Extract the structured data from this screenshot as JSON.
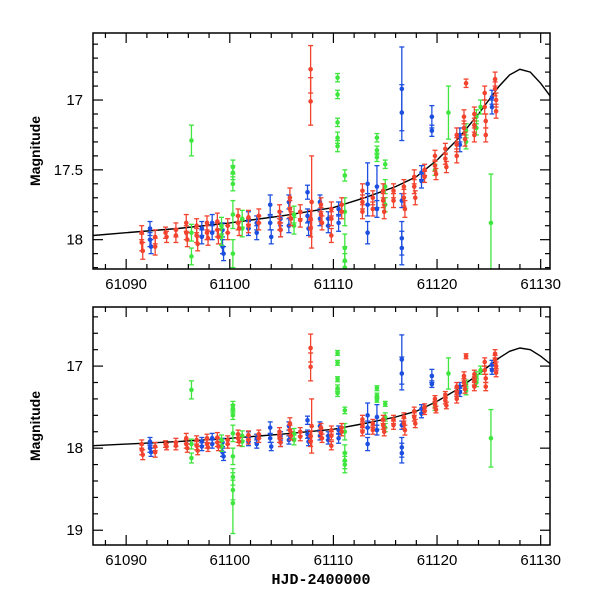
{
  "chart_data": [
    {
      "type": "scatter",
      "panel": "top",
      "title": "",
      "xlabel": "",
      "ylabel": "Magnitude",
      "xlim": [
        61086.8,
        61130.9
      ],
      "ylim": [
        18.21,
        16.52
      ],
      "y_inverted": true,
      "xticks": [
        61090,
        61100,
        61110,
        61120,
        61130
      ],
      "xtick_labels": [
        "61090",
        "61100",
        "61110",
        "61120",
        "61130"
      ],
      "yticks": [
        17,
        17.5,
        18
      ],
      "ytick_labels": [
        "17",
        "17.5",
        "18"
      ],
      "y_minor_step": 0.1,
      "grid": false
    },
    {
      "type": "scatter",
      "panel": "bottom",
      "title": "",
      "xlabel": "HJD-2400000",
      "ylabel": "Magnitude",
      "xlim": [
        61086.8,
        61130.9
      ],
      "ylim": [
        19.18,
        16.28
      ],
      "y_inverted": true,
      "xticks": [
        61090,
        61100,
        61110,
        61120,
        61130
      ],
      "xtick_labels": [
        "61090",
        "61100",
        "61110",
        "61120",
        "61130"
      ],
      "yticks": [
        17,
        18,
        19
      ],
      "ytick_labels": [
        "17",
        "18",
        "19"
      ],
      "y_minor_step": 0.2,
      "grid": false
    }
  ],
  "model": {
    "name": "model curve",
    "color": "#000000",
    "points": [
      [
        61086.8,
        17.97
      ],
      [
        61090,
        17.95
      ],
      [
        61095,
        17.92
      ],
      [
        61100,
        17.88
      ],
      [
        61105,
        17.83
      ],
      [
        61110,
        17.77
      ],
      [
        61113,
        17.7
      ],
      [
        61116,
        17.62
      ],
      [
        61118,
        17.55
      ],
      [
        61120,
        17.43
      ],
      [
        61122,
        17.28
      ],
      [
        61124,
        17.1
      ],
      [
        61125,
        17.0
      ],
      [
        61126,
        16.9
      ],
      [
        61127,
        16.82
      ],
      [
        61128,
        16.78
      ],
      [
        61129,
        16.8
      ],
      [
        61130,
        16.88
      ],
      [
        61130.9,
        16.97
      ]
    ]
  },
  "series": [
    {
      "name": "blue",
      "color": "#1c4fe0",
      "points": [
        [
          61092.3,
          17.92,
          0.05
        ],
        [
          61092.3,
          18.0,
          0.05
        ],
        [
          61092.4,
          18.05,
          0.05
        ],
        [
          61097.3,
          17.92,
          0.05
        ],
        [
          61097.3,
          17.98,
          0.05
        ],
        [
          61098.3,
          17.88,
          0.06
        ],
        [
          61098.3,
          17.95,
          0.05
        ],
        [
          61099.3,
          17.93,
          0.05
        ],
        [
          61099.3,
          18.05,
          0.05
        ],
        [
          61099.4,
          18.1,
          0.05
        ],
        [
          61101.8,
          17.86,
          0.06
        ],
        [
          61101.8,
          17.92,
          0.05
        ],
        [
          61102.6,
          17.88,
          0.05
        ],
        [
          61102.6,
          17.95,
          0.05
        ],
        [
          61103.9,
          17.75,
          0.07
        ],
        [
          61103.9,
          17.88,
          0.05
        ],
        [
          61104.0,
          17.98,
          0.05
        ],
        [
          61104.9,
          17.85,
          0.05
        ],
        [
          61104.9,
          17.93,
          0.05
        ],
        [
          61105.7,
          17.73,
          0.05
        ],
        [
          61105.7,
          17.9,
          0.05
        ],
        [
          61107.5,
          17.66,
          0.05
        ],
        [
          61107.5,
          17.83,
          0.05
        ],
        [
          61107.6,
          17.92,
          0.05
        ],
        [
          61108.7,
          17.73,
          0.05
        ],
        [
          61108.7,
          17.85,
          0.05
        ],
        [
          61109.5,
          17.85,
          0.05
        ],
        [
          61109.5,
          17.9,
          0.05
        ],
        [
          61110.5,
          17.78,
          0.05
        ],
        [
          61110.5,
          17.88,
          0.06
        ],
        [
          61113.3,
          17.6,
          0.15
        ],
        [
          61113.3,
          17.75,
          0.08
        ],
        [
          61113.3,
          17.95,
          0.08
        ],
        [
          61114.2,
          17.62,
          0.15
        ],
        [
          61114.2,
          17.78,
          0.06
        ],
        [
          61116.6,
          16.92,
          0.3
        ],
        [
          61116.6,
          17.09,
          0.2
        ],
        [
          61116.6,
          17.72,
          0.05
        ],
        [
          61116.6,
          17.99,
          0.12
        ],
        [
          61116.6,
          18.06,
          0.12
        ],
        [
          61118.5,
          17.52,
          0.05
        ],
        [
          61118.5,
          17.58,
          0.05
        ],
        [
          61119.5,
          17.12,
          0.08
        ],
        [
          61119.5,
          17.22,
          0.04
        ],
        [
          61122.2,
          17.25,
          0.05
        ],
        [
          61122.2,
          17.32,
          0.05
        ],
        [
          61125.3,
          16.98,
          0.05
        ],
        [
          61125.3,
          17.05,
          0.05
        ]
      ]
    },
    {
      "name": "green",
      "color": "#3ee63e",
      "points": [
        [
          61096.3,
          17.29,
          0.11
        ],
        [
          61096.3,
          17.95,
          0.06
        ],
        [
          61096.3,
          18.12,
          0.06
        ],
        [
          61099.2,
          17.9,
          0.06
        ],
        [
          61099.2,
          17.98,
          0.06
        ],
        [
          61100.3,
          17.48,
          0.05
        ],
        [
          61100.3,
          17.52,
          0.05
        ],
        [
          61100.3,
          17.6,
          0.05
        ],
        [
          61100.3,
          17.82,
          0.1
        ],
        [
          61100.3,
          18.1,
          0.1
        ],
        [
          61100.3,
          18.35,
          0.1
        ],
        [
          61100.3,
          18.51,
          0.12
        ],
        [
          61100.3,
          18.67,
          0.37
        ],
        [
          61101.2,
          17.85,
          0.06
        ],
        [
          61101.2,
          17.92,
          0.06
        ],
        [
          61106.2,
          17.82,
          0.06
        ],
        [
          61106.2,
          17.9,
          0.06
        ],
        [
          61110.4,
          16.84,
          0.03
        ],
        [
          61110.4,
          16.96,
          0.03
        ],
        [
          61110.4,
          17.16,
          0.03
        ],
        [
          61110.4,
          17.27,
          0.04
        ],
        [
          61110.4,
          17.33,
          0.04
        ],
        [
          61111.1,
          17.54,
          0.04
        ],
        [
          61111.1,
          17.8,
          0.1
        ],
        [
          61111.1,
          18.06,
          0.1
        ],
        [
          61111.1,
          18.15,
          0.1
        ],
        [
          61111.1,
          18.2,
          0.1
        ],
        [
          61114.2,
          17.27,
          0.03
        ],
        [
          61114.2,
          17.36,
          0.03
        ],
        [
          61114.2,
          17.41,
          0.03
        ],
        [
          61115.0,
          17.46,
          0.03
        ],
        [
          61115.0,
          17.62,
          0.05
        ],
        [
          61115.0,
          17.75,
          0.05
        ],
        [
          61119.8,
          17.5,
          0.04
        ],
        [
          61121.1,
          17.09,
          0.19
        ],
        [
          61122.8,
          17.22,
          0.05
        ],
        [
          61122.8,
          17.3,
          0.05
        ],
        [
          61123.8,
          17.12,
          0.05
        ],
        [
          61123.8,
          17.2,
          0.05
        ],
        [
          61124.2,
          17.05,
          0.05
        ],
        [
          61125.2,
          17.88,
          0.35
        ]
      ]
    },
    {
      "name": "red",
      "color": "#f2432e",
      "points": [
        [
          61091.5,
          18.02,
          0.06
        ],
        [
          61091.5,
          17.95,
          0.05
        ],
        [
          61091.6,
          18.08,
          0.06
        ],
        [
          61092.8,
          17.98,
          0.05
        ],
        [
          61092.8,
          18.05,
          0.06
        ],
        [
          61093.8,
          17.95,
          0.04
        ],
        [
          61093.9,
          17.98,
          0.04
        ],
        [
          61094.8,
          17.93,
          0.05
        ],
        [
          61094.8,
          17.97,
          0.05
        ],
        [
          61095.8,
          17.88,
          0.06
        ],
        [
          61095.8,
          17.95,
          0.05
        ],
        [
          61095.9,
          18.0,
          0.05
        ],
        [
          61096.8,
          17.9,
          0.05
        ],
        [
          61096.8,
          17.97,
          0.05
        ],
        [
          61096.9,
          18.03,
          0.05
        ],
        [
          61097.8,
          17.88,
          0.05
        ],
        [
          61097.8,
          17.95,
          0.05
        ],
        [
          61097.9,
          17.99,
          0.05
        ],
        [
          61098.8,
          17.87,
          0.06
        ],
        [
          61098.8,
          17.93,
          0.05
        ],
        [
          61098.9,
          17.98,
          0.05
        ],
        [
          61099.8,
          17.9,
          0.05
        ],
        [
          61099.8,
          17.95,
          0.05
        ],
        [
          61100.8,
          17.83,
          0.05
        ],
        [
          61100.8,
          17.88,
          0.05
        ],
        [
          61100.9,
          17.92,
          0.05
        ],
        [
          61101.8,
          17.84,
          0.05
        ],
        [
          61101.8,
          17.9,
          0.05
        ],
        [
          61102.8,
          17.83,
          0.05
        ],
        [
          61102.8,
          17.88,
          0.05
        ],
        [
          61104.8,
          17.8,
          0.05
        ],
        [
          61104.8,
          17.88,
          0.05
        ],
        [
          61104.9,
          17.93,
          0.05
        ],
        [
          61105.8,
          17.7,
          0.07
        ],
        [
          61105.8,
          17.78,
          0.06
        ],
        [
          61105.9,
          17.85,
          0.05
        ],
        [
          61106.8,
          17.8,
          0.05
        ],
        [
          61106.8,
          17.86,
          0.05
        ],
        [
          61107.8,
          16.78,
          0.17
        ],
        [
          61107.8,
          17.01,
          0.17
        ],
        [
          61107.9,
          17.73,
          0.33
        ],
        [
          61107.8,
          17.85,
          0.06
        ],
        [
          61107.8,
          17.92,
          0.06
        ],
        [
          61108.8,
          17.75,
          0.05
        ],
        [
          61108.8,
          17.82,
          0.05
        ],
        [
          61108.9,
          17.88,
          0.05
        ],
        [
          61109.8,
          17.78,
          0.05
        ],
        [
          61109.8,
          17.85,
          0.05
        ],
        [
          61109.8,
          17.97,
          0.05
        ],
        [
          61110.8,
          17.75,
          0.05
        ],
        [
          61110.8,
          17.8,
          0.05
        ],
        [
          61112.8,
          17.65,
          0.05
        ],
        [
          61112.8,
          17.73,
          0.05
        ],
        [
          61112.8,
          17.8,
          0.05
        ],
        [
          61113.8,
          17.7,
          0.05
        ],
        [
          61113.8,
          17.78,
          0.05
        ],
        [
          61114.8,
          17.65,
          0.05
        ],
        [
          61114.8,
          17.72,
          0.05
        ],
        [
          61114.9,
          17.8,
          0.05
        ],
        [
          61115.8,
          17.65,
          0.05
        ],
        [
          61115.8,
          17.72,
          0.05
        ],
        [
          61116.8,
          17.62,
          0.05
        ],
        [
          61116.8,
          17.7,
          0.06
        ],
        [
          61116.9,
          17.78,
          0.06
        ],
        [
          61117.8,
          17.55,
          0.05
        ],
        [
          61117.8,
          17.62,
          0.05
        ],
        [
          61117.9,
          17.7,
          0.05
        ],
        [
          61118.8,
          17.5,
          0.04
        ],
        [
          61118.8,
          17.55,
          0.04
        ],
        [
          61119.8,
          17.4,
          0.04
        ],
        [
          61119.8,
          17.47,
          0.04
        ],
        [
          61119.9,
          17.53,
          0.04
        ],
        [
          61120.8,
          17.35,
          0.04
        ],
        [
          61120.8,
          17.42,
          0.04
        ],
        [
          61120.9,
          17.48,
          0.04
        ],
        [
          61121.9,
          17.25,
          0.05
        ],
        [
          61121.9,
          17.32,
          0.05
        ],
        [
          61121.9,
          17.4,
          0.05
        ],
        [
          61122.6,
          17.12,
          0.05
        ],
        [
          61122.6,
          17.2,
          0.05
        ],
        [
          61122.7,
          17.28,
          0.05
        ],
        [
          61122.8,
          16.88,
          0.03
        ],
        [
          61123.6,
          17.1,
          0.05
        ],
        [
          61123.6,
          17.18,
          0.05
        ],
        [
          61123.6,
          17.25,
          0.05
        ],
        [
          61124.6,
          16.95,
          0.05
        ],
        [
          61124.6,
          17.05,
          0.05
        ],
        [
          61124.7,
          17.15,
          0.05
        ],
        [
          61124.7,
          17.25,
          0.05
        ],
        [
          61125.6,
          16.85,
          0.05
        ],
        [
          61125.6,
          16.92,
          0.05
        ],
        [
          61125.7,
          17.0,
          0.05
        ],
        [
          61125.7,
          17.08,
          0.05
        ]
      ]
    }
  ]
}
